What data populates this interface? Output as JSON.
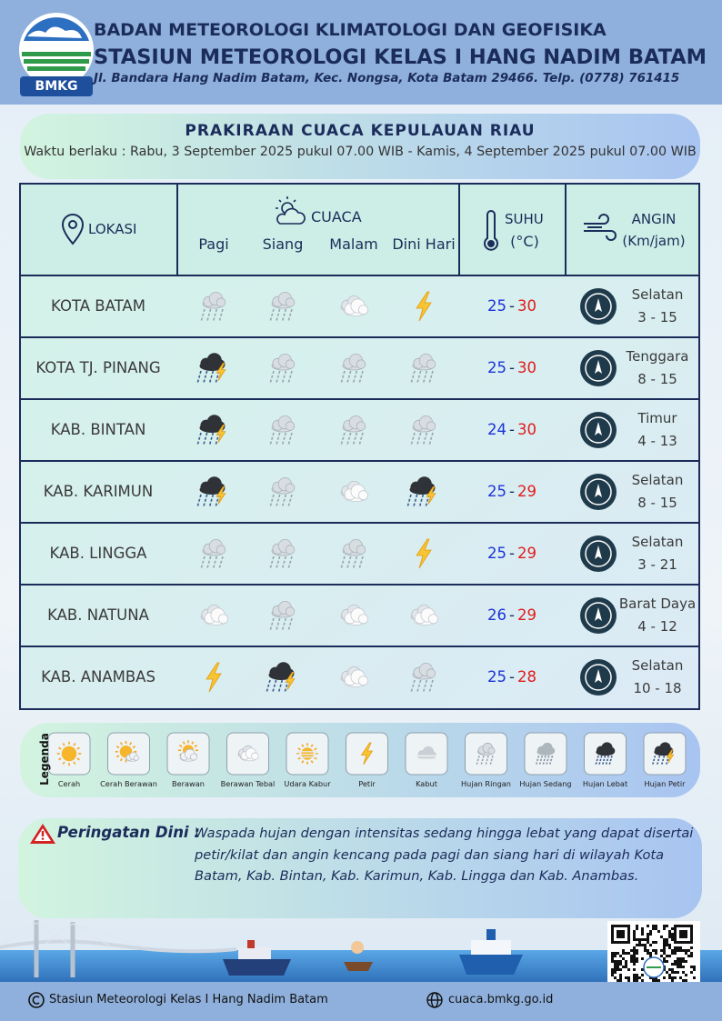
{
  "header": {
    "logo_text": "BMKG",
    "agency": "BADAN METEOROLOGI KLIMATOLOGI DAN GEOFISIKA",
    "station": "STASIUN METEOROLOGI KELAS I HANG NADIM BATAM",
    "address": "Jl. Bandara Hang Nadim Batam, Kec. Nongsa, Kota Batam 29466.  Telp. (0778) 761415"
  },
  "title": "PRAKIRAAN CUACA KEPULAUAN RIAU",
  "validity": "Waktu berlaku : Rabu, 3 September 2025 pukul 07.00 WIB - Kamis, 4 September 2025 pukul 07.00 WIB",
  "table": {
    "headers": {
      "location": "LOKASI",
      "weather": "CUACA",
      "periods": [
        "Pagi",
        "Siang",
        "Malam",
        "Dini Hari"
      ],
      "temperature": "SUHU",
      "temperature_unit": "(°C)",
      "wind": "ANGIN",
      "wind_unit": "(Km/jam)"
    },
    "temp_separator": "-",
    "rows": [
      {
        "location": "KOTA BATAM",
        "weather": [
          "Hujan Ringan",
          "Hujan Ringan",
          "Berawan Tebal",
          "Petir"
        ],
        "temp_min": 25,
        "temp_max": 30,
        "wind_direction": "Selatan",
        "wind_speed": "3 - 15"
      },
      {
        "location": "KOTA TJ. PINANG",
        "weather": [
          "Hujan Petir",
          "Hujan Ringan",
          "Hujan Ringan",
          "Hujan Ringan"
        ],
        "temp_min": 25,
        "temp_max": 30,
        "wind_direction": "Tenggara",
        "wind_speed": "8 - 15"
      },
      {
        "location": "KAB. BINTAN",
        "weather": [
          "Hujan Petir",
          "Hujan Ringan",
          "Hujan Ringan",
          "Hujan Ringan"
        ],
        "temp_min": 24,
        "temp_max": 30,
        "wind_direction": "Timur",
        "wind_speed": "4 - 13"
      },
      {
        "location": "KAB. KARIMUN",
        "weather": [
          "Hujan Petir",
          "Hujan Ringan",
          "Berawan Tebal",
          "Hujan Petir"
        ],
        "temp_min": 25,
        "temp_max": 29,
        "wind_direction": "Selatan",
        "wind_speed": "8 - 15"
      },
      {
        "location": "KAB. LINGGA",
        "weather": [
          "Hujan Ringan",
          "Hujan Ringan",
          "Hujan Ringan",
          "Petir"
        ],
        "temp_min": 25,
        "temp_max": 29,
        "wind_direction": "Selatan",
        "wind_speed": "3 - 21"
      },
      {
        "location": "KAB. NATUNA",
        "weather": [
          "Berawan Tebal",
          "Hujan Ringan",
          "Berawan Tebal",
          "Berawan Tebal"
        ],
        "temp_min": 26,
        "temp_max": 29,
        "wind_direction": "Barat Daya",
        "wind_speed": "4 - 12"
      },
      {
        "location": "KAB. ANAMBAS",
        "weather": [
          "Petir",
          "Hujan Petir",
          "Berawan Tebal",
          "Hujan Ringan"
        ],
        "temp_min": 25,
        "temp_max": 28,
        "wind_direction": "Selatan",
        "wind_speed": "10 - 18"
      }
    ]
  },
  "legend": {
    "title": "Legenda",
    "items": [
      "Cerah",
      "Cerah Berawan",
      "Berawan",
      "Berawan Tebal",
      "Udara Kabur",
      "Petir",
      "Kabut",
      "Hujan Ringan",
      "Hujan Sedang",
      "Hujan Lebat",
      "Hujan Petir"
    ]
  },
  "warning": {
    "label": "Peringatan Dini :",
    "text": "Waspada hujan dengan intensitas sedang hingga lebat yang dapat disertai petir/kilat dan angin kencang pada pagi dan siang hari di wilayah Kota Batam, Kab. Bintan, Kab. Karimun,  Kab. Lingga dan Kab. Anambas."
  },
  "footer": {
    "copyright": "Stasiun Meteorologi Kelas I Hang Nadim Batam",
    "website": "cuaca.bmkg.go.id"
  }
}
